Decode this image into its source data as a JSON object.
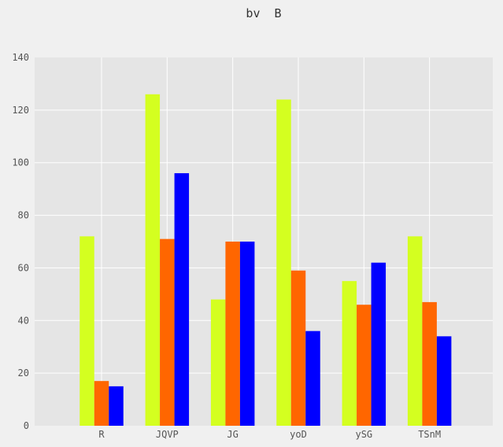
{
  "chart_data": {
    "type": "bar",
    "title": "bv  B",
    "xlabel": "",
    "ylabel": "",
    "categories": [
      "R",
      "JQVP",
      "JG",
      "yoD",
      "ySG",
      "TSnM"
    ],
    "series": [
      {
        "values": [
          72,
          126,
          48,
          124,
          55,
          72
        ],
        "color": "#d4ff20"
      },
      {
        "values": [
          17,
          71,
          70,
          59,
          46,
          47
        ],
        "color": "#ff6600"
      },
      {
        "values": [
          15,
          96,
          70,
          36,
          62,
          34
        ],
        "color": "#0000ff"
      }
    ],
    "ylim": [
      0,
      140
    ],
    "yticks": [
      0,
      20,
      40,
      60,
      80,
      100,
      120,
      140
    ],
    "grid": true,
    "legend": "none",
    "colors": {
      "figure_background": "#f0f0f0",
      "plot_background": "#e5e5e5",
      "grid": "#ffffff",
      "text": "#555555"
    }
  }
}
